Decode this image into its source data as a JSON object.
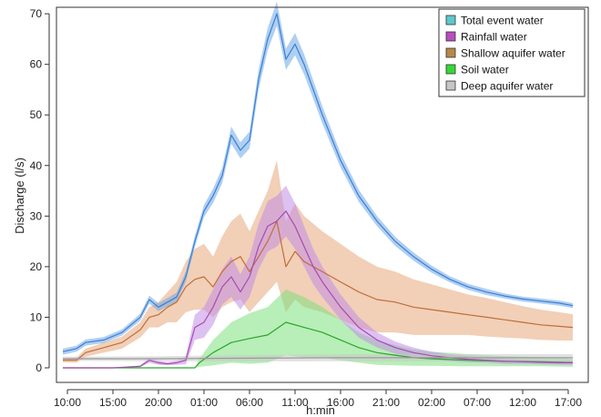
{
  "chart_data": {
    "type": "line",
    "title": "",
    "xlabel": "h:min",
    "ylabel": "Discharge (l/s)",
    "ylim": [
      0,
      72
    ],
    "y_ticks": [
      0,
      10,
      20,
      30,
      40,
      50,
      60,
      70
    ],
    "x_ticks": [
      "10:00",
      "15:00",
      "20:00",
      "01:00",
      "06:00",
      "11:00",
      "16:00",
      "21:00",
      "02:00",
      "07:00",
      "12:00",
      "17:00"
    ],
    "x_tick_hours": [
      0,
      5,
      10,
      15,
      20,
      25,
      30,
      35,
      40,
      45,
      50,
      55
    ],
    "xlim_hours": [
      -1.2,
      57.2
    ],
    "legend_position": "top-right",
    "grid": false,
    "series": [
      {
        "name": "Total event water",
        "color": "#3a7fd5",
        "band_color": "#6ea7e8",
        "x": [
          -0.5,
          1,
          2,
          4,
          6,
          8,
          9,
          10,
          11,
          12,
          13,
          14,
          15,
          16,
          17,
          18,
          19,
          20,
          21,
          22,
          23,
          24,
          25,
          26,
          27,
          28,
          30,
          32,
          34,
          36,
          38,
          40,
          42,
          44,
          46,
          48,
          50,
          52,
          54,
          55.5
        ],
        "y": [
          3.2,
          3.8,
          5,
          5.5,
          7,
          10,
          13.5,
          12,
          13,
          14,
          18,
          25,
          31,
          34,
          38,
          46,
          43,
          45,
          57,
          65,
          70,
          61,
          64,
          60,
          55,
          50,
          41,
          34,
          29,
          25,
          22,
          19.5,
          17.5,
          16,
          15,
          14.2,
          13.6,
          13.2,
          12.8,
          12.3
        ],
        "band": [
          0.6,
          0.6,
          0.6,
          0.6,
          0.6,
          0.7,
          0.8,
          0.8,
          0.8,
          0.9,
          1,
          1.1,
          1.2,
          1.4,
          1.5,
          1.7,
          1.6,
          1.7,
          2,
          2.2,
          2.4,
          2.1,
          2.2,
          2,
          1.8,
          1.7,
          1.4,
          1.2,
          1,
          0.9,
          0.8,
          0.7,
          0.6,
          0.6,
          0.6,
          0.5,
          0.5,
          0.5,
          0.5,
          0.5
        ]
      },
      {
        "name": "Rainfall water",
        "color": "#a84ab0",
        "band_color": "#c18ee6",
        "x": [
          -0.5,
          5,
          8,
          9,
          10,
          11,
          12,
          13,
          14,
          15,
          16,
          17,
          18,
          19,
          20,
          21,
          22,
          23,
          24,
          25,
          26,
          27,
          28,
          30,
          32,
          34,
          36,
          38,
          40,
          42,
          44,
          46,
          48,
          50,
          52,
          54,
          55.5
        ],
        "y": [
          0,
          0,
          0.3,
          1.5,
          1,
          0.8,
          1,
          1.5,
          8,
          9,
          12,
          16,
          18,
          15,
          18,
          24,
          28,
          29,
          31,
          28,
          24,
          20,
          17,
          12,
          8,
          5.5,
          4,
          3,
          2.4,
          2,
          1.7,
          1.5,
          1.3,
          1.2,
          1.1,
          1,
          1
        ],
        "band": [
          0,
          0,
          0.2,
          0.5,
          0.4,
          0.3,
          0.4,
          0.8,
          2.5,
          3,
          3.5,
          3.5,
          4,
          3.5,
          4,
          4.5,
          5,
          5,
          5,
          4.5,
          4,
          3.5,
          3,
          2.5,
          2,
          1.5,
          1.2,
          1,
          0.8,
          0.7,
          0.6,
          0.5,
          0.5,
          0.4,
          0.4,
          0.4,
          0.4
        ]
      },
      {
        "name": "Shallow aquifer water",
        "color": "#c06e3a",
        "band_color": "#e8a87c",
        "x": [
          -0.5,
          1,
          2,
          4,
          6,
          8,
          9,
          10,
          11,
          12,
          13,
          14,
          15,
          16,
          17,
          18,
          19,
          20,
          21,
          22,
          23,
          24,
          25,
          26,
          27,
          28,
          30,
          32,
          34,
          36,
          38,
          40,
          42,
          44,
          46,
          48,
          50,
          52,
          54,
          55.5
        ],
        "y": [
          1.5,
          1.5,
          3,
          4,
          5,
          7.5,
          10,
          10.5,
          12,
          13,
          16,
          17.5,
          18,
          16,
          19,
          21,
          22,
          19,
          22,
          25,
          29,
          20,
          23,
          21,
          20,
          19,
          17,
          15,
          13.5,
          13,
          12,
          11.5,
          11,
          10.5,
          10,
          9.5,
          9,
          8.5,
          8.2,
          8
        ],
        "band": [
          0.4,
          0.5,
          0.8,
          1,
          1.2,
          1.5,
          2,
          2.5,
          3,
          4,
          5,
          6,
          6.5,
          6,
          7,
          8,
          8.5,
          8,
          9,
          10,
          12,
          9,
          9.5,
          9,
          8.5,
          8,
          7.5,
          7,
          6.5,
          6,
          5.5,
          5,
          4.5,
          4,
          3.8,
          3.5,
          3.2,
          3,
          2.8,
          2.6
        ]
      },
      {
        "name": "Soil water",
        "color": "#2aa62a",
        "band_color": "#7ee07e",
        "x": [
          -0.5,
          14,
          14.5,
          16,
          18,
          20,
          22,
          24,
          26,
          28,
          30,
          32,
          34,
          36,
          38,
          40,
          44,
          48,
          52,
          55.5
        ],
        "y": [
          0,
          0,
          1,
          3,
          5,
          5.8,
          6.5,
          9,
          8,
          7,
          5.5,
          4,
          3,
          2.5,
          2,
          1.8,
          1.5,
          1.3,
          1.2,
          1
        ],
        "band": [
          0,
          0,
          0.8,
          2.5,
          4,
          5,
          5.5,
          6.5,
          6,
          5,
          4,
          3,
          2.4,
          2,
          1.6,
          1.4,
          1.2,
          1,
          0.9,
          0.8
        ]
      },
      {
        "name": "Deep aquifer water",
        "color": "#9a9a9a",
        "band_color": "#c8c8c8",
        "x": [
          -0.5,
          10,
          20,
          30,
          40,
          50,
          55.5
        ],
        "y": [
          1.8,
          1.8,
          1.9,
          2,
          2,
          2,
          2
        ],
        "band": [
          0.4,
          0.5,
          0.6,
          0.7,
          0.7,
          0.7,
          0.7
        ]
      }
    ]
  }
}
